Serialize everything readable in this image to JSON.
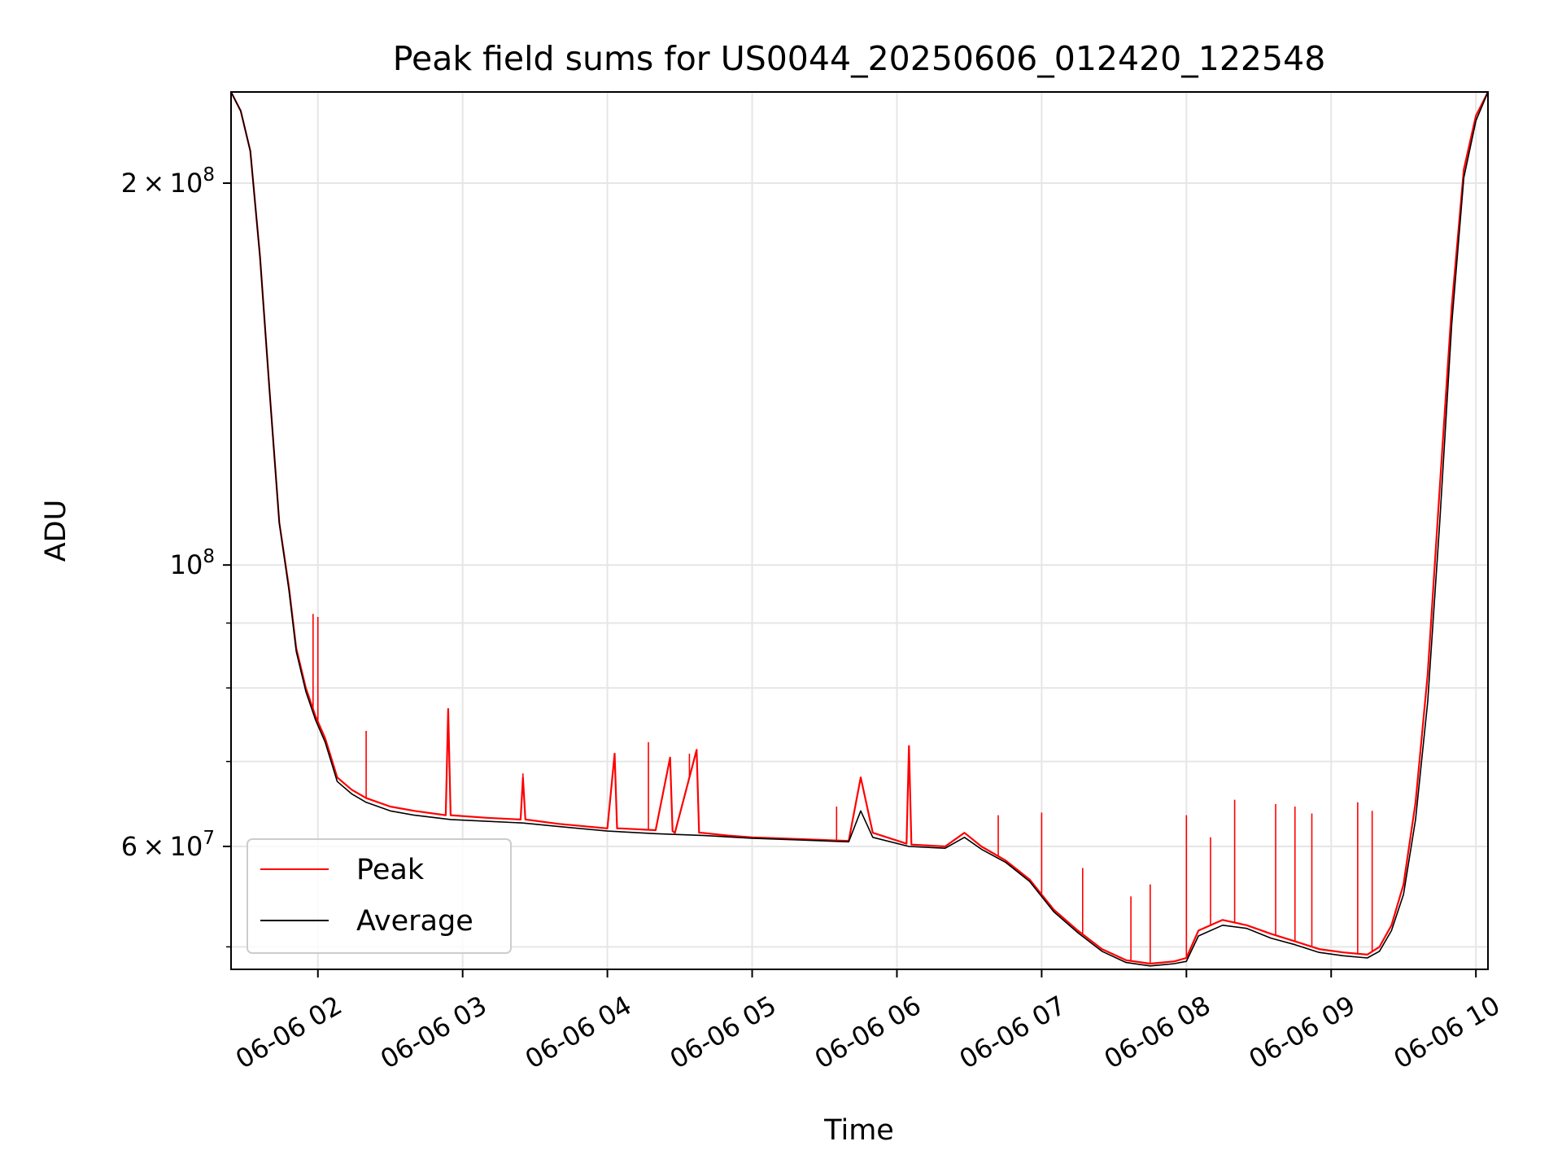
{
  "chart_data": {
    "type": "line",
    "title": "Peak field sums for US0044_20250606_012420_122548",
    "xlabel": "Time",
    "ylabel": "ADU",
    "x_range": [
      "2025-06-06 01:24",
      "2025-06-06 10:05"
    ],
    "x_ticks": [
      {
        "label": "06-06 02",
        "value": "2025-06-06 02:00"
      },
      {
        "label": "06-06 03",
        "value": "2025-06-06 03:00"
      },
      {
        "label": "06-06 04",
        "value": "2025-06-06 04:00"
      },
      {
        "label": "06-06 05",
        "value": "2025-06-06 05:00"
      },
      {
        "label": "06-06 06",
        "value": "2025-06-06 06:00"
      },
      {
        "label": "06-06 07",
        "value": "2025-06-06 07:00"
      },
      {
        "label": "06-06 08",
        "value": "2025-06-06 08:00"
      },
      {
        "label": "06-06 09",
        "value": "2025-06-06 09:00"
      },
      {
        "label": "06-06 10",
        "value": "2025-06-06 10:00"
      }
    ],
    "y_scale": "log",
    "ylim": [
      48000000,
      236000000
    ],
    "y_major_ticks": [
      {
        "value": 60000000,
        "mantissa": "6",
        "exponent": "7"
      },
      {
        "value": 100000000,
        "mantissa": "",
        "exponent": "8"
      },
      {
        "value": 200000000,
        "mantissa": "2",
        "exponent": "8"
      }
    ],
    "y_minor_ticks": [
      50000000,
      70000000,
      80000000,
      90000000
    ],
    "grid": true,
    "legend_position": "lower-left",
    "series": [
      {
        "name": "Peak",
        "color": "#ff0000",
        "x": [
          "2025-06-06 01:24",
          "2025-06-06 01:28",
          "2025-06-06 01:32",
          "2025-06-06 01:36",
          "2025-06-06 01:40",
          "2025-06-06 01:44",
          "2025-06-06 01:48",
          "2025-06-06 01:51",
          "2025-06-06 01:55",
          "2025-06-06 01:59",
          "2025-06-06 02:03",
          "2025-06-06 02:06",
          "2025-06-06 02:08",
          "2025-06-06 02:14",
          "2025-06-06 02:20",
          "2025-06-06 02:30",
          "2025-06-06 02:40",
          "2025-06-06 02:53",
          "2025-06-06 02:54",
          "2025-06-06 02:55",
          "2025-06-06 03:10",
          "2025-06-06 03:24",
          "2025-06-06 03:25",
          "2025-06-06 03:26",
          "2025-06-06 03:40",
          "2025-06-06 04:00",
          "2025-06-06 04:03",
          "2025-06-06 04:04",
          "2025-06-06 04:05",
          "2025-06-06 04:20",
          "2025-06-06 04:26",
          "2025-06-06 04:27",
          "2025-06-06 04:28",
          "2025-06-06 04:37",
          "2025-06-06 04:38",
          "2025-06-06 04:39",
          "2025-06-06 04:50",
          "2025-06-06 05:00",
          "2025-06-06 05:20",
          "2025-06-06 05:40",
          "2025-06-06 05:45",
          "2025-06-06 05:50",
          "2025-06-06 06:04",
          "2025-06-06 06:05",
          "2025-06-06 06:06",
          "2025-06-06 06:20",
          "2025-06-06 06:28",
          "2025-06-06 06:35",
          "2025-06-06 06:45",
          "2025-06-06 06:55",
          "2025-06-06 07:05",
          "2025-06-06 07:15",
          "2025-06-06 07:25",
          "2025-06-06 07:35",
          "2025-06-06 07:45",
          "2025-06-06 07:50",
          "2025-06-06 07:55",
          "2025-06-06 08:00",
          "2025-06-06 08:05",
          "2025-06-06 08:15",
          "2025-06-06 08:25",
          "2025-06-06 08:35",
          "2025-06-06 08:45",
          "2025-06-06 08:55",
          "2025-06-06 09:05",
          "2025-06-06 09:15",
          "2025-06-06 09:20",
          "2025-06-06 09:25",
          "2025-06-06 09:30",
          "2025-06-06 09:35",
          "2025-06-06 09:40",
          "2025-06-06 09:45",
          "2025-06-06 09:50",
          "2025-06-06 09:55",
          "2025-06-06 10:00",
          "2025-06-06 10:05"
        ],
        "y": [
          236000000,
          228000000,
          212000000,
          175000000,
          137000000,
          108000000,
          96000000,
          86000000,
          80000000,
          76000000,
          73000000,
          70000000,
          68000000,
          66500000,
          65500000,
          64500000,
          64000000,
          63500000,
          77000000,
          63500000,
          63200000,
          63000000,
          68000000,
          63000000,
          62500000,
          62000000,
          71000000,
          62000000,
          62000000,
          61800000,
          70500000,
          61700000,
          61500000,
          71500000,
          61500000,
          61500000,
          61200000,
          61000000,
          60800000,
          60600000,
          68000000,
          61500000,
          60300000,
          72000000,
          60200000,
          60000000,
          61500000,
          60000000,
          58500000,
          56500000,
          53500000,
          51500000,
          49800000,
          48800000,
          48500000,
          48600000,
          48700000,
          49000000,
          51500000,
          52500000,
          52000000,
          51200000,
          50500000,
          49800000,
          49500000,
          49300000,
          50000000,
          52000000,
          56000000,
          65000000,
          82000000,
          115000000,
          160000000,
          205000000,
          226000000,
          236000000
        ]
      },
      {
        "name": "Average",
        "color": "#000000",
        "x": [
          "2025-06-06 01:24",
          "2025-06-06 01:28",
          "2025-06-06 01:32",
          "2025-06-06 01:36",
          "2025-06-06 01:40",
          "2025-06-06 01:44",
          "2025-06-06 01:48",
          "2025-06-06 01:51",
          "2025-06-06 01:55",
          "2025-06-06 01:59",
          "2025-06-06 02:03",
          "2025-06-06 02:06",
          "2025-06-06 02:08",
          "2025-06-06 02:14",
          "2025-06-06 02:20",
          "2025-06-06 02:30",
          "2025-06-06 02:40",
          "2025-06-06 02:55",
          "2025-06-06 03:10",
          "2025-06-06 03:25",
          "2025-06-06 03:40",
          "2025-06-06 04:00",
          "2025-06-06 04:20",
          "2025-06-06 04:40",
          "2025-06-06 05:00",
          "2025-06-06 05:20",
          "2025-06-06 05:40",
          "2025-06-06 05:45",
          "2025-06-06 05:50",
          "2025-06-06 06:05",
          "2025-06-06 06:20",
          "2025-06-06 06:28",
          "2025-06-06 06:35",
          "2025-06-06 06:45",
          "2025-06-06 06:55",
          "2025-06-06 07:05",
          "2025-06-06 07:15",
          "2025-06-06 07:25",
          "2025-06-06 07:35",
          "2025-06-06 07:45",
          "2025-06-06 07:50",
          "2025-06-06 07:55",
          "2025-06-06 08:00",
          "2025-06-06 08:05",
          "2025-06-06 08:15",
          "2025-06-06 08:25",
          "2025-06-06 08:35",
          "2025-06-06 08:45",
          "2025-06-06 08:55",
          "2025-06-06 09:05",
          "2025-06-06 09:15",
          "2025-06-06 09:20",
          "2025-06-06 09:25",
          "2025-06-06 09:30",
          "2025-06-06 09:35",
          "2025-06-06 09:40",
          "2025-06-06 09:45",
          "2025-06-06 09:50",
          "2025-06-06 09:55",
          "2025-06-06 10:00",
          "2025-06-06 10:05"
        ],
        "y": [
          236000000,
          228000000,
          212000000,
          175000000,
          137000000,
          108000000,
          95500000,
          85500000,
          79500000,
          75500000,
          72500000,
          69500000,
          67500000,
          66000000,
          65000000,
          64000000,
          63500000,
          63000000,
          62800000,
          62600000,
          62200000,
          61700000,
          61400000,
          61200000,
          60900000,
          60700000,
          60500000,
          64000000,
          61000000,
          60000000,
          59800000,
          61000000,
          59700000,
          58300000,
          56300000,
          53300000,
          51300000,
          49600000,
          48600000,
          48300000,
          48400000,
          48500000,
          48700000,
          51000000,
          52000000,
          51700000,
          50800000,
          50200000,
          49500000,
          49200000,
          49000000,
          49600000,
          51500000,
          55000000,
          63000000,
          78000000,
          108000000,
          155000000,
          202000000,
          224000000,
          236000000
        ]
      }
    ],
    "spikes": [
      {
        "series": "Peak",
        "x": "2025-06-06 01:58",
        "y": 91500000
      },
      {
        "series": "Peak",
        "x": "2025-06-06 02:00",
        "y": 91000000
      },
      {
        "series": "Peak",
        "x": "2025-06-06 02:20",
        "y": 74000000
      },
      {
        "series": "Peak",
        "x": "2025-06-06 03:25",
        "y": 68500000
      },
      {
        "series": "Peak",
        "x": "2025-06-06 04:17",
        "y": 72500000
      },
      {
        "series": "Peak",
        "x": "2025-06-06 04:34",
        "y": 71000000
      },
      {
        "series": "Peak",
        "x": "2025-06-06 05:35",
        "y": 64500000
      },
      {
        "series": "Peak",
        "x": "2025-06-06 06:42",
        "y": 63500000
      },
      {
        "series": "Peak",
        "x": "2025-06-06 07:00",
        "y": 63800000
      },
      {
        "series": "Peak",
        "x": "2025-06-06 07:17",
        "y": 57700000
      },
      {
        "series": "Peak",
        "x": "2025-06-06 07:37",
        "y": 54800000
      },
      {
        "series": "Peak",
        "x": "2025-06-06 07:45",
        "y": 56000000
      },
      {
        "series": "Peak",
        "x": "2025-06-06 08:00",
        "y": 63500000
      },
      {
        "series": "Peak",
        "x": "2025-06-06 08:10",
        "y": 61000000
      },
      {
        "series": "Peak",
        "x": "2025-06-06 08:20",
        "y": 65300000
      },
      {
        "series": "Peak",
        "x": "2025-06-06 08:37",
        "y": 64800000
      },
      {
        "series": "Peak",
        "x": "2025-06-06 08:45",
        "y": 64500000
      },
      {
        "series": "Peak",
        "x": "2025-06-06 08:52",
        "y": 63700000
      },
      {
        "series": "Peak",
        "x": "2025-06-06 09:11",
        "y": 65000000
      },
      {
        "series": "Peak",
        "x": "2025-06-06 09:17",
        "y": 64000000
      }
    ]
  }
}
